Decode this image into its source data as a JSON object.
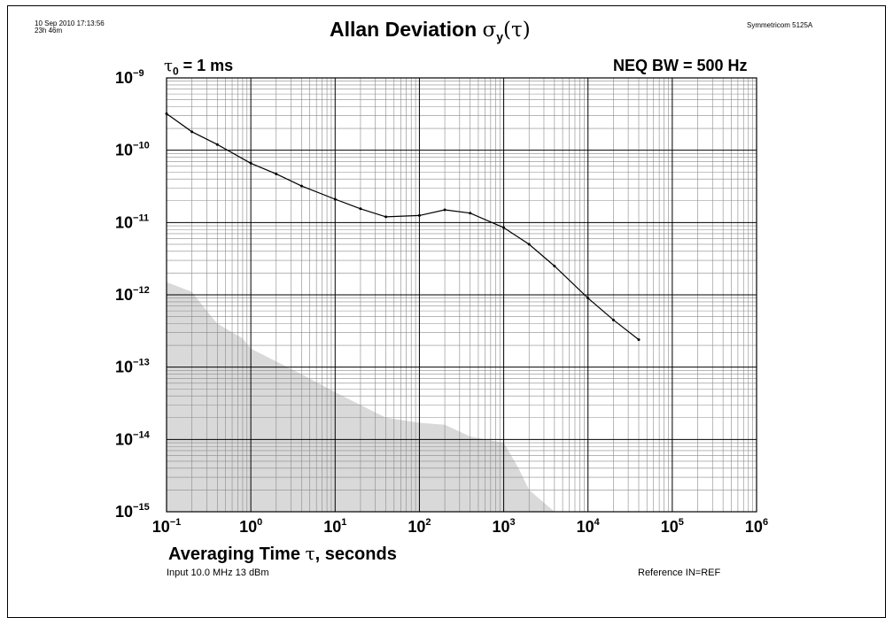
{
  "header": {
    "timestamp": "10 Sep 2010 17:13:56",
    "elapsed": "23h 46m",
    "title_main": "Allan Deviation ",
    "title_sigma": "σ",
    "title_sub": "y",
    "title_tail": "(τ)",
    "instrument": "Symmetricom 5125A"
  },
  "annotations": {
    "tau0_symbol": "τ",
    "tau0_sub": "0",
    "tau0_value": " = 1 ms",
    "neq_bw": "NEQ BW = 500 Hz"
  },
  "axes": {
    "xlabel_pre": "Averaging Time ",
    "xlabel_sym": "τ",
    "xlabel_post": ", seconds"
  },
  "footer": {
    "input": "Input 10.0 MHz 13 dBm",
    "reference": "Reference IN=REF"
  },
  "chart_data": {
    "type": "line",
    "xscale": "log",
    "yscale": "log",
    "xlim": [
      0.1,
      1000000
    ],
    "ylim": [
      1e-15,
      1e-09
    ],
    "grid": true,
    "x_tick_labels": [
      {
        "base": "10",
        "exp": "−1"
      },
      {
        "base": "10",
        "exp": "0"
      },
      {
        "base": "10",
        "exp": "1"
      },
      {
        "base": "10",
        "exp": "2"
      },
      {
        "base": "10",
        "exp": "3"
      },
      {
        "base": "10",
        "exp": "4"
      },
      {
        "base": "10",
        "exp": "5"
      },
      {
        "base": "10",
        "exp": "6"
      }
    ],
    "y_tick_labels": [
      {
        "base": "10",
        "exp": "−9"
      },
      {
        "base": "10",
        "exp": "−10"
      },
      {
        "base": "10",
        "exp": "−11"
      },
      {
        "base": "10",
        "exp": "−12"
      },
      {
        "base": "10",
        "exp": "−13"
      },
      {
        "base": "10",
        "exp": "−14"
      },
      {
        "base": "10",
        "exp": "−15"
      }
    ],
    "series": [
      {
        "x": [
          0.1,
          0.2,
          0.4,
          1,
          2,
          4,
          10,
          20,
          40,
          100,
          200,
          400,
          1000,
          2000,
          4000,
          10000,
          20000,
          40000
        ],
        "y": [
          3.2e-10,
          1.8e-10,
          1.2e-10,
          6.6e-11,
          4.7e-11,
          3.2e-11,
          2.1e-11,
          1.55e-11,
          1.2e-11,
          1.25e-11,
          1.5e-11,
          1.35e-11,
          8.5e-12,
          5e-12,
          2.5e-12,
          9e-13,
          4.5e-13,
          2.4e-13
        ],
        "color": "#000000"
      }
    ],
    "noise_floor": {
      "fill": "#d9d9d9",
      "x": [
        0.1,
        0.2,
        0.3,
        0.4,
        0.8,
        1,
        2,
        4,
        10,
        20,
        40,
        100,
        200,
        400,
        600,
        1000,
        1500,
        2000,
        4000
      ],
      "y": [
        1.5e-12,
        1.1e-12,
        6e-13,
        4e-13,
        2.5e-13,
        1.8e-13,
        1.2e-13,
        8e-14,
        4.5e-14,
        3e-14,
        2e-14,
        1.7e-14,
        1.6e-14,
        1.1e-14,
        1e-14,
        9e-15,
        4e-15,
        2e-15,
        1e-15
      ]
    }
  }
}
